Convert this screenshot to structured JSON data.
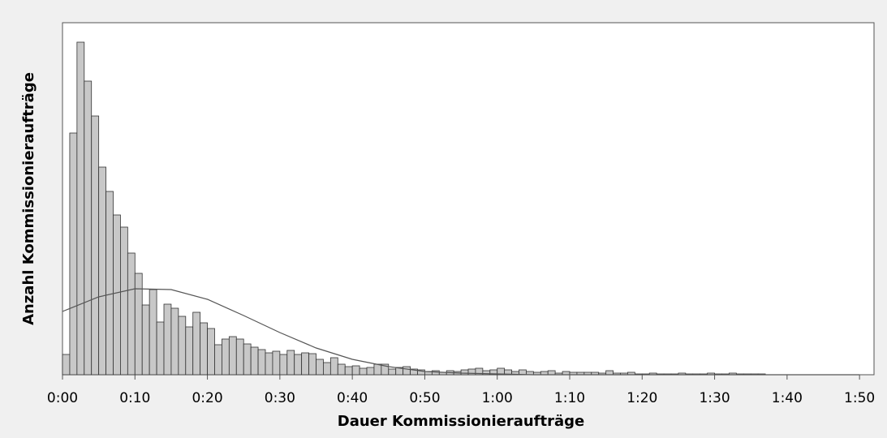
{
  "chart_data": {
    "type": "histogram",
    "x_label": "Dauer Kommissionieraufträge",
    "y_label": "Anzahl Kommissionieraufträge",
    "bins": [
      0,
      1,
      2,
      3,
      4,
      5,
      6,
      7,
      8,
      9,
      10,
      11,
      12,
      13,
      14,
      15,
      16,
      17,
      18,
      19,
      20,
      21,
      22,
      23,
      24,
      25,
      26,
      27,
      28,
      29,
      30,
      31,
      32,
      33,
      34,
      35,
      36,
      37,
      38,
      39,
      40,
      41,
      42,
      43,
      44,
      45,
      46,
      47,
      48,
      49,
      50,
      51,
      52,
      53,
      54,
      55,
      56,
      57,
      58,
      59,
      60,
      61,
      62,
      63,
      64,
      65,
      66,
      67,
      68,
      69,
      70,
      71,
      72,
      73,
      74,
      75,
      76,
      77,
      78,
      79,
      80,
      81,
      82,
      83,
      84,
      85,
      86,
      87,
      88,
      89,
      90,
      91,
      92,
      93,
      94,
      95,
      96,
      97
    ],
    "counts": [
      25,
      298,
      410,
      362,
      319,
      256,
      226,
      197,
      182,
      150,
      125,
      86,
      105,
      65,
      87,
      82,
      72,
      59,
      77,
      64,
      57,
      37,
      44,
      47,
      44,
      38,
      34,
      31,
      27,
      29,
      25,
      30,
      25,
      27,
      26,
      19,
      15,
      21,
      13,
      10,
      11,
      8,
      9,
      13,
      13,
      7,
      9,
      10,
      7,
      6,
      4,
      5,
      3,
      5,
      4,
      6,
      7,
      8,
      5,
      6,
      8,
      6,
      4,
      6,
      4,
      3,
      4,
      5,
      2,
      4,
      3,
      3,
      3,
      3,
      2,
      5,
      2,
      2,
      3,
      1,
      1,
      2,
      1,
      1,
      1,
      2,
      1,
      1,
      1,
      2,
      1,
      1,
      2,
      1,
      1,
      1,
      1
    ],
    "color": "#c8c8c8",
    "curve": {
      "color": "#555555",
      "x": [
        0,
        5,
        10,
        15,
        20,
        25,
        30,
        35,
        40,
        45,
        50,
        55,
        60,
        65,
        70,
        75,
        80,
        85,
        90,
        95,
        100,
        105,
        110
      ],
      "values": [
        78,
        96,
        106,
        105,
        93,
        73,
        52,
        33,
        19,
        10,
        4,
        2,
        1,
        0,
        0,
        0,
        0,
        0,
        0,
        0,
        0,
        0,
        0
      ]
    },
    "xlim": [
      0,
      112
    ],
    "ylim": [
      0,
      434
    ],
    "xticks": [
      {
        "value": 0,
        "label": "0:00"
      },
      {
        "value": 10,
        "label": "0:10"
      },
      {
        "value": 20,
        "label": "0:20"
      },
      {
        "value": 30,
        "label": "0:30"
      },
      {
        "value": 40,
        "label": "0:40"
      },
      {
        "value": 50,
        "label": "0:50"
      },
      {
        "value": 60,
        "label": "1:00"
      },
      {
        "value": 70,
        "label": "1:10"
      },
      {
        "value": 80,
        "label": "1:20"
      },
      {
        "value": 90,
        "label": "1:30"
      },
      {
        "value": 100,
        "label": "1:40"
      },
      {
        "value": 110,
        "label": "1:50"
      }
    ]
  }
}
